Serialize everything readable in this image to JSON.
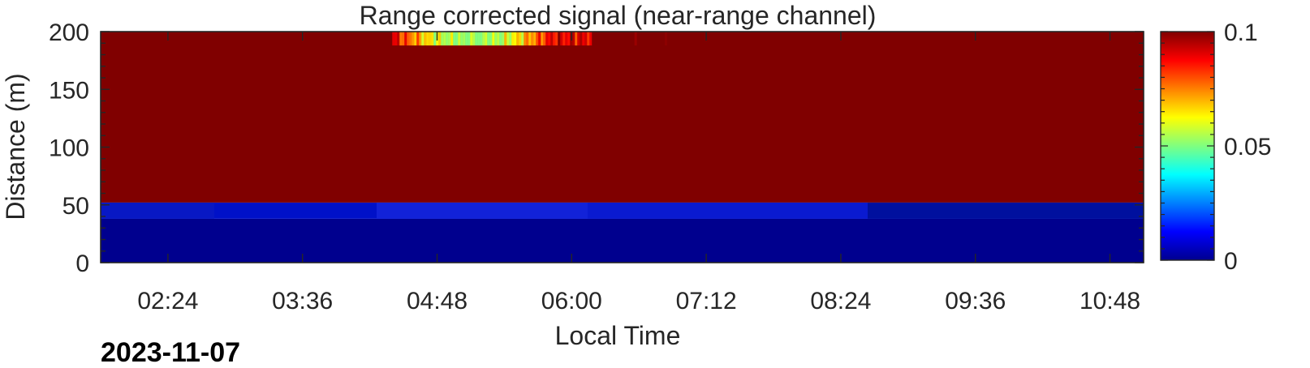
{
  "chart_data": {
    "type": "heatmap",
    "title": "Range corrected signal (near-range channel)",
    "xlabel": "Local Time",
    "ylabel": "Distance (m)",
    "date_label": "2023-11-07",
    "x_range": [
      "01:48",
      "11:06"
    ],
    "x_tick_labels": [
      "02:24",
      "03:36",
      "04:48",
      "06:00",
      "07:12",
      "08:24",
      "09:36",
      "10:48"
    ],
    "y_range": [
      0,
      200
    ],
    "y_ticks": [
      0,
      50,
      100,
      150,
      200
    ],
    "colormap": "jet",
    "color_range": [
      0,
      0.1
    ],
    "colorbar_ticks": [
      0,
      0.05,
      0.1
    ],
    "regions": [
      {
        "y_from": 0,
        "y_to": 38,
        "value": 0.002,
        "color": "#00008e"
      },
      {
        "y_from": 38,
        "y_to": 52,
        "value": 0.012,
        "color": "#0011c8"
      },
      {
        "y_from": 52,
        "y_to": 200,
        "value": 0.1,
        "color": "#800000"
      }
    ],
    "features": [
      {
        "description": "",
        "x_from": "04:24",
        "x_to": "06:12",
        "y_from": 188,
        "y_to": 200,
        "value_min": 0.05,
        "value_max": 0.09
      }
    ],
    "grid": false,
    "legend": "none"
  }
}
